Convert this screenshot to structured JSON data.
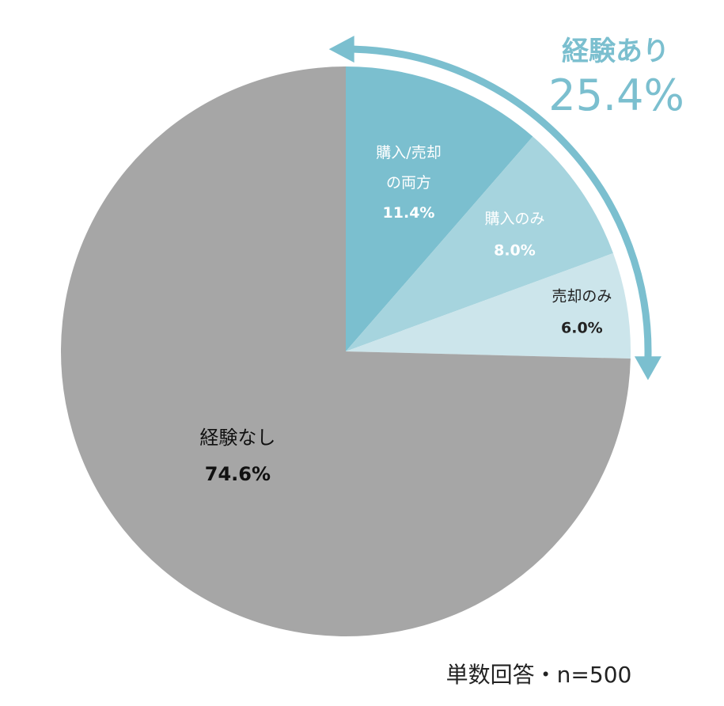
{
  "chart_data": {
    "type": "pie",
    "start_angle_deg": 0,
    "direction": "clockwise",
    "slices": [
      {
        "label_lines": [
          "購入/売却",
          "の両方"
        ],
        "value": 11.4,
        "value_label": "11.4%",
        "color": "#7bbfcf",
        "label_color": "#ffffff"
      },
      {
        "label_lines": [
          "購入のみ"
        ],
        "value": 8.0,
        "value_label": "8.0%",
        "color": "#a6d4de",
        "label_color": "#ffffff"
      },
      {
        "label_lines": [
          "売却のみ"
        ],
        "value": 6.0,
        "value_label": "6.0%",
        "color": "#cce5eb",
        "label_color": "#222222"
      },
      {
        "label_lines": [
          "経験なし"
        ],
        "value": 74.6,
        "value_label": "74.6%",
        "color": "#a6a6a6",
        "label_color": "#111111"
      }
    ],
    "group_annotation": {
      "label": "経験あり",
      "value_label": "25.4%",
      "value": 25.4,
      "color": "#7bbfcf"
    },
    "footnote": "単数回答・n=500"
  }
}
